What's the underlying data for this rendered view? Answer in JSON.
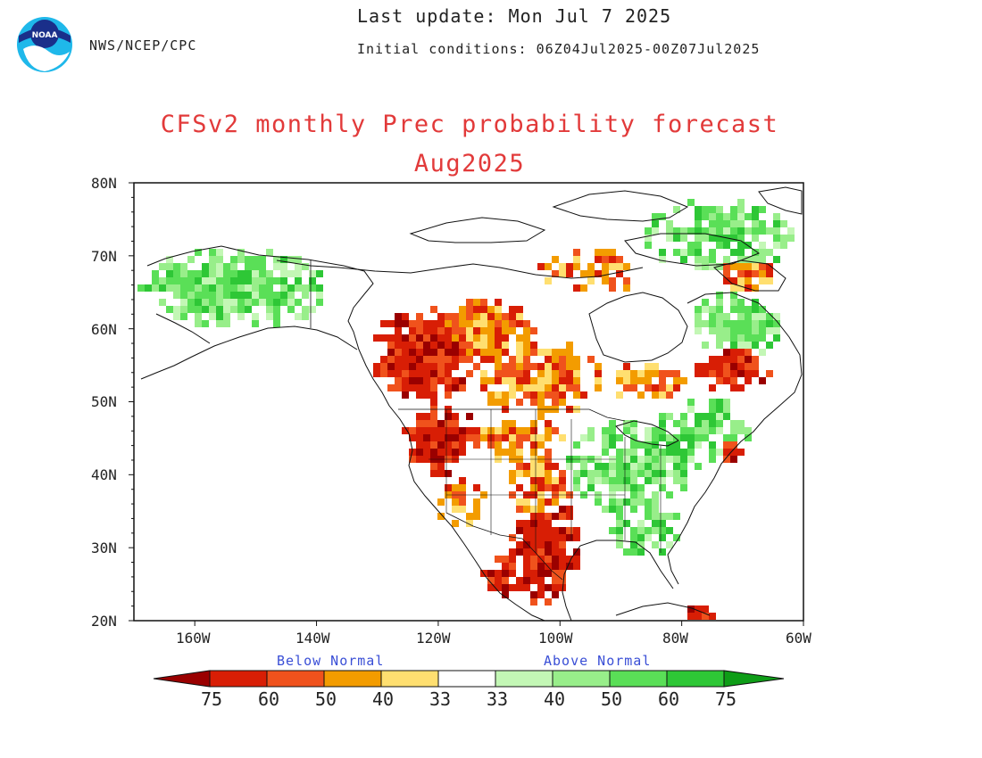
{
  "header": {
    "agency_logo_text": "NOAA",
    "agency": "NWS/NCEP/CPC",
    "last_update": "Last update: Mon Jul 7 2025",
    "initial_conditions": "Initial conditions: 06Z04Jul2025-00Z07Jul2025"
  },
  "title": {
    "line1": "CFSv2 monthly Prec probability forecast",
    "line2": "Aug2025",
    "color": "#e23a3a"
  },
  "map": {
    "lat_labels": [
      "80N",
      "70N",
      "60N",
      "50N",
      "40N",
      "30N",
      "20N"
    ],
    "lon_labels": [
      "160W",
      "140W",
      "120W",
      "100W",
      "80W",
      "60W"
    ],
    "lon_range": [
      -170,
      -60
    ],
    "lat_range": [
      20,
      80
    ]
  },
  "legend": {
    "below_label": "Below Normal",
    "above_label": "Above Normal",
    "label_color": "#3a4fd6",
    "values": [
      "75",
      "60",
      "50",
      "40",
      "33",
      "33",
      "40",
      "50",
      "60",
      "75"
    ],
    "colors": {
      "below": [
        "#9a0000",
        "#d81e05",
        "#f0521c",
        "#f39c00",
        "#ffdf70"
      ],
      "neutral": "#ffffff",
      "above": [
        "#c3f7b5",
        "#98ee8a",
        "#5adf57",
        "#2ec736",
        "#0e9d17"
      ]
    }
  }
}
